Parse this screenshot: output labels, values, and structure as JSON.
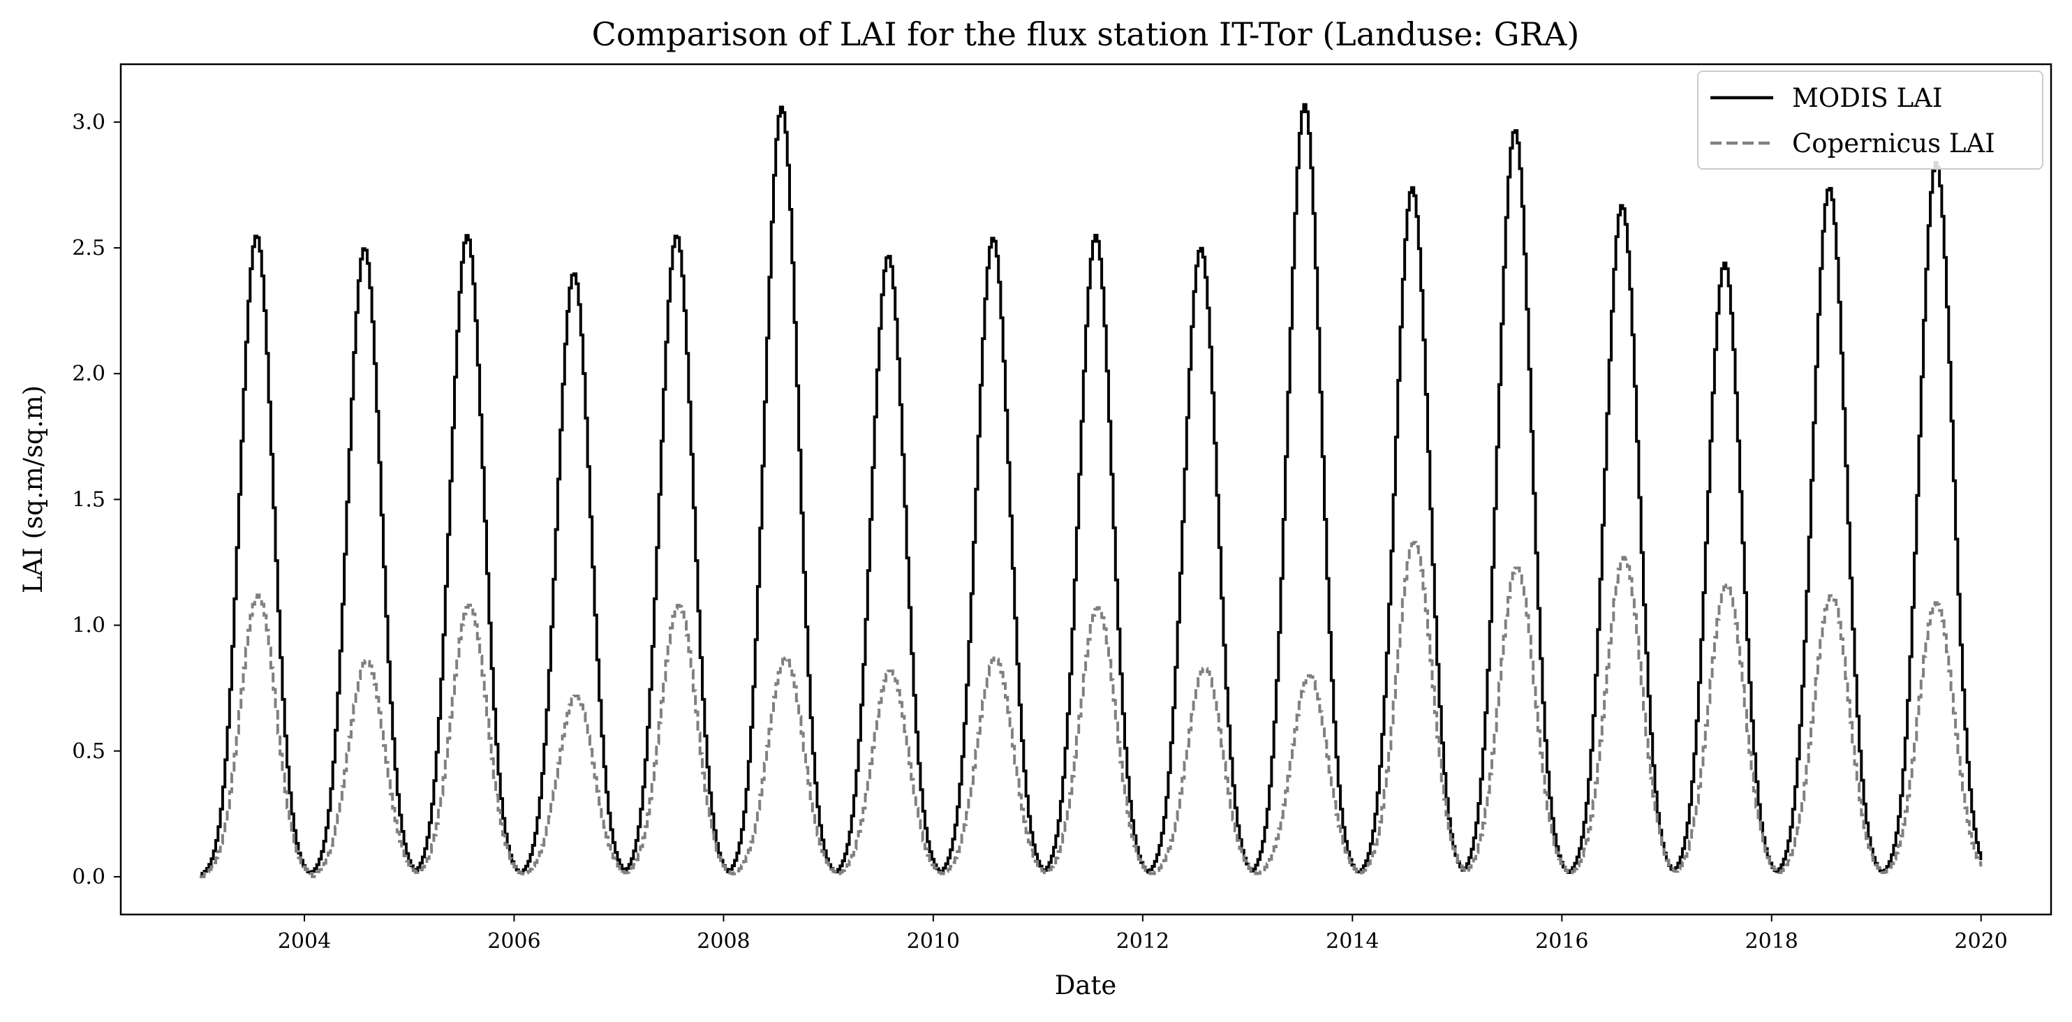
{
  "chart_data": {
    "type": "line",
    "title": "Comparison of LAI for the flux station IT-Tor (Landuse: GRA)",
    "xlabel": "Date",
    "ylabel": "LAI (sq.m/sq.m)",
    "xlim": [
      "2002-04-01",
      "2020-09-01"
    ],
    "ylim": [
      -0.15,
      3.23
    ],
    "xticks": [
      "2004",
      "2006",
      "2008",
      "2010",
      "2012",
      "2014",
      "2016",
      "2018",
      "2020"
    ],
    "yticks": [
      "0.0",
      "0.5",
      "1.0",
      "1.5",
      "2.0",
      "2.5",
      "3.0"
    ],
    "grid": false,
    "legend": "upper right",
    "series": [
      {
        "name": "MODIS LAI",
        "color": "#000000",
        "style": "solid",
        "drawstyle": "steps",
        "start": "2003-01-01",
        "end": "2019-12-31",
        "peaks": [
          {
            "date": "2003-07-15",
            "value": 2.55
          },
          {
            "date": "2004-07-25",
            "value": 2.5
          },
          {
            "date": "2005-07-18",
            "value": 2.55
          },
          {
            "date": "2006-07-25",
            "value": 2.4
          },
          {
            "date": "2007-07-18",
            "value": 2.55
          },
          {
            "date": "2008-07-18",
            "value": 3.06
          },
          {
            "date": "2009-07-25",
            "value": 2.47
          },
          {
            "date": "2010-07-25",
            "value": 2.54
          },
          {
            "date": "2011-07-18",
            "value": 2.55
          },
          {
            "date": "2012-07-18",
            "value": 2.5
          },
          {
            "date": "2013-07-15",
            "value": 3.07
          },
          {
            "date": "2014-07-25",
            "value": 2.74
          },
          {
            "date": "2015-07-18",
            "value": 2.97
          },
          {
            "date": "2016-07-25",
            "value": 2.67
          },
          {
            "date": "2017-07-18",
            "value": 2.44
          },
          {
            "date": "2018-07-18",
            "value": 2.74
          },
          {
            "date": "2019-07-25",
            "value": 2.84
          }
        ]
      },
      {
        "name": "Copernicus LAI",
        "color": "#808080",
        "style": "dashed",
        "drawstyle": "steps",
        "start": "2003-01-01",
        "end": "2019-12-31",
        "peaks": [
          {
            "date": "2003-07-20",
            "value": 1.12
          },
          {
            "date": "2004-08-01",
            "value": 0.86
          },
          {
            "date": "2005-07-25",
            "value": 1.08
          },
          {
            "date": "2006-08-01",
            "value": 0.72
          },
          {
            "date": "2007-07-25",
            "value": 1.08
          },
          {
            "date": "2008-08-01",
            "value": 0.87
          },
          {
            "date": "2009-08-01",
            "value": 0.82
          },
          {
            "date": "2010-08-01",
            "value": 0.87
          },
          {
            "date": "2011-07-25",
            "value": 1.07
          },
          {
            "date": "2012-08-01",
            "value": 0.83
          },
          {
            "date": "2013-08-01",
            "value": 0.8
          },
          {
            "date": "2014-08-01",
            "value": 1.33
          },
          {
            "date": "2015-07-25",
            "value": 1.23
          },
          {
            "date": "2016-08-01",
            "value": 1.27
          },
          {
            "date": "2017-07-25",
            "value": 1.16
          },
          {
            "date": "2018-07-25",
            "value": 1.12
          },
          {
            "date": "2019-07-25",
            "value": 1.09
          }
        ]
      }
    ]
  }
}
